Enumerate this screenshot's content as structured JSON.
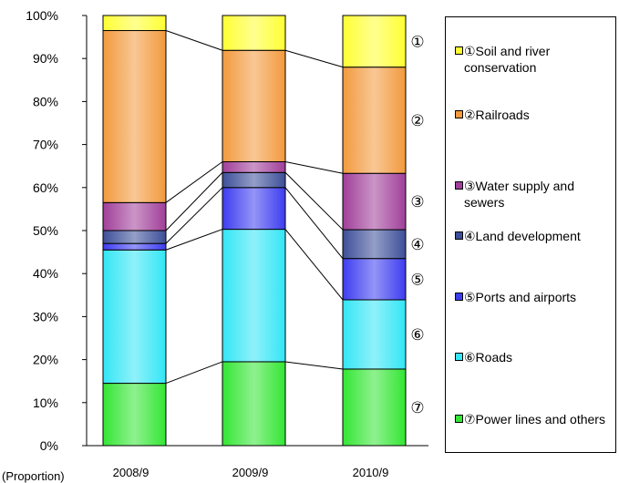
{
  "chart_data": {
    "type": "bar",
    "stacked": true,
    "categories": [
      "2008/9",
      "2009/9",
      "2010/9"
    ],
    "xlabel": "(Proportion)",
    "ylabel": "",
    "ylim": [
      0,
      100
    ],
    "y_ticks": [
      "0%",
      "10%",
      "20%",
      "30%",
      "40%",
      "50%",
      "60%",
      "70%",
      "80%",
      "90%",
      "100%"
    ],
    "grid": false,
    "legend_position": "right",
    "series": [
      {
        "marker": "⑦",
        "name": "⑦Power lines and others",
        "color": "#33e633",
        "values": [
          14.5,
          19.5,
          17.8
        ]
      },
      {
        "marker": "⑥",
        "name": "⑥Roads",
        "color": "#33e6f5",
        "values": [
          31.0,
          30.8,
          16.1
        ]
      },
      {
        "marker": "⑤",
        "name": "⑤Ports and airports",
        "color": "#3d3df0",
        "values": [
          1.5,
          9.7,
          9.6
        ]
      },
      {
        "marker": "④",
        "name": "④Land development",
        "color": "#3d4f99",
        "values": [
          3.0,
          3.5,
          6.7
        ]
      },
      {
        "marker": "③",
        "name": "③Water supply and sewers",
        "color": "#a03f9a",
        "values": [
          6.5,
          2.5,
          13.1
        ]
      },
      {
        "marker": "②",
        "name": "②Railroads",
        "color": "#f29a3d",
        "values": [
          40.0,
          25.9,
          24.7
        ]
      },
      {
        "marker": "①",
        "name": "①Soil and river conservation",
        "color": "#ffff33",
        "values": [
          3.5,
          8.1,
          12.0
        ]
      }
    ]
  }
}
